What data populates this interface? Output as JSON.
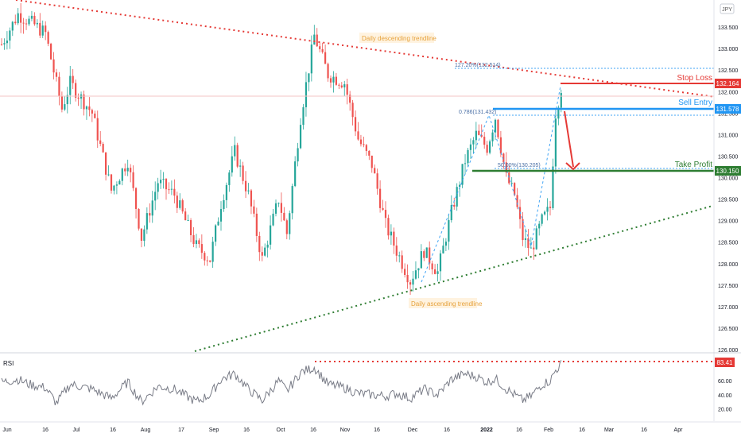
{
  "chart_data": {
    "type": "candlestick",
    "currency_badge": "JPY",
    "price_axis": {
      "min": 126.0,
      "max": 134.0,
      "ticks": [
        "126.000",
        "126.500",
        "127.000",
        "127.500",
        "128.000",
        "128.500",
        "129.000",
        "129.500",
        "130.000",
        "130.500",
        "131.000",
        "131.500",
        "132.000",
        "132.500",
        "133.000",
        "133.500"
      ]
    },
    "time_axis": {
      "ticks": [
        "Jun",
        "16",
        "Jul",
        "16",
        "Aug",
        "17",
        "Sep",
        "16",
        "Oct",
        "16",
        "Nov",
        "16",
        "Dec",
        "16",
        "2022",
        "16",
        "Feb",
        "16",
        "Mar",
        "16",
        "Apr"
      ]
    },
    "price_path": [
      {
        "t": 0,
        "p": 133.1
      },
      {
        "t": 6,
        "p": 133.8
      },
      {
        "t": 12,
        "p": 133.55
      },
      {
        "t": 16,
        "p": 133.35
      },
      {
        "t": 22,
        "p": 131.6
      },
      {
        "t": 25,
        "p": 132.2
      },
      {
        "t": 33,
        "p": 131.5
      },
      {
        "t": 40,
        "p": 129.7
      },
      {
        "t": 46,
        "p": 130.4
      },
      {
        "t": 51,
        "p": 128.6
      },
      {
        "t": 57,
        "p": 129.9
      },
      {
        "t": 63,
        "p": 129.6
      },
      {
        "t": 71,
        "p": 128.4
      },
      {
        "t": 76,
        "p": 128.1
      },
      {
        "t": 80,
        "p": 129.4
      },
      {
        "t": 85,
        "p": 130.6
      },
      {
        "t": 90,
        "p": 129.6
      },
      {
        "t": 95,
        "p": 128.1
      },
      {
        "t": 101,
        "p": 129.5
      },
      {
        "t": 104,
        "p": 128.7
      },
      {
        "t": 109,
        "p": 131.4
      },
      {
        "t": 114,
        "p": 133.3
      },
      {
        "t": 119,
        "p": 132.4
      },
      {
        "t": 125,
        "p": 132.2
      },
      {
        "t": 130,
        "p": 130.9
      },
      {
        "t": 135,
        "p": 130.3
      },
      {
        "t": 140,
        "p": 128.9
      },
      {
        "t": 144,
        "p": 128.3
      },
      {
        "t": 149,
        "p": 127.6
      },
      {
        "t": 154,
        "p": 128.3
      },
      {
        "t": 159,
        "p": 127.8
      },
      {
        "t": 164,
        "p": 129.2
      },
      {
        "t": 169,
        "p": 130.4
      },
      {
        "t": 173,
        "p": 131.0
      },
      {
        "t": 177,
        "p": 130.7
      },
      {
        "t": 180,
        "p": 131.4
      },
      {
        "t": 184,
        "p": 130.0
      },
      {
        "t": 187,
        "p": 129.6
      },
      {
        "t": 190,
        "p": 128.6
      },
      {
        "t": 193,
        "p": 128.3
      },
      {
        "t": 197,
        "p": 129.0
      },
      {
        "t": 200,
        "p": 129.3
      },
      {
        "t": 202,
        "p": 131.5
      },
      {
        "t": 204,
        "p": 132.1
      }
    ],
    "rsi": {
      "label": "RSI",
      "ticks": [
        "20.00",
        "40.00",
        "60.00"
      ],
      "marker_value": "83.41",
      "path": [
        {
          "t": 0,
          "p": 58
        },
        {
          "t": 6,
          "p": 62
        },
        {
          "t": 10,
          "p": 55
        },
        {
          "t": 16,
          "p": 50
        },
        {
          "t": 20,
          "p": 28
        },
        {
          "t": 25,
          "p": 55
        },
        {
          "t": 33,
          "p": 48
        },
        {
          "t": 40,
          "p": 35
        },
        {
          "t": 46,
          "p": 58
        },
        {
          "t": 51,
          "p": 30
        },
        {
          "t": 57,
          "p": 52
        },
        {
          "t": 63,
          "p": 48
        },
        {
          "t": 71,
          "p": 30
        },
        {
          "t": 76,
          "p": 40
        },
        {
          "t": 80,
          "p": 62
        },
        {
          "t": 85,
          "p": 70
        },
        {
          "t": 90,
          "p": 48
        },
        {
          "t": 95,
          "p": 32
        },
        {
          "t": 101,
          "p": 60
        },
        {
          "t": 104,
          "p": 45
        },
        {
          "t": 109,
          "p": 72
        },
        {
          "t": 114,
          "p": 79
        },
        {
          "t": 119,
          "p": 55
        },
        {
          "t": 125,
          "p": 50
        },
        {
          "t": 130,
          "p": 42
        },
        {
          "t": 135,
          "p": 40
        },
        {
          "t": 140,
          "p": 38
        },
        {
          "t": 144,
          "p": 42
        },
        {
          "t": 149,
          "p": 35
        },
        {
          "t": 154,
          "p": 48
        },
        {
          "t": 159,
          "p": 40
        },
        {
          "t": 164,
          "p": 62
        },
        {
          "t": 169,
          "p": 70
        },
        {
          "t": 173,
          "p": 66
        },
        {
          "t": 177,
          "p": 58
        },
        {
          "t": 180,
          "p": 63
        },
        {
          "t": 184,
          "p": 48
        },
        {
          "t": 187,
          "p": 40
        },
        {
          "t": 190,
          "p": 32
        },
        {
          "t": 193,
          "p": 38
        },
        {
          "t": 197,
          "p": 55
        },
        {
          "t": 200,
          "p": 60
        },
        {
          "t": 202,
          "p": 75
        },
        {
          "t": 204,
          "p": 83.4
        }
      ]
    },
    "levels": [
      {
        "name": "Stop Loss",
        "value": "132.164",
        "color": "#e53935"
      },
      {
        "name": "Sell Entry",
        "value": "131.578",
        "color": "#2196f3"
      },
      {
        "name": "Take Profit",
        "value": "130.150",
        "color": "#2e7d32"
      }
    ],
    "fib_labels": {
      "ext": "127.20%(132.514)",
      "retr_786": "0.786(131.432)",
      "retr_50": "50.00%(130.205)"
    },
    "annotations": {
      "descending": "Daily descending trendline",
      "ascending": "Daily ascending trendline"
    },
    "colors": {
      "up": "#26a69a",
      "down": "#ef5350",
      "descending_trend": "#e53935",
      "ascending_trend": "#2e7d32",
      "annotation_bg": "#fff3e0",
      "annotation_text": "#e6a23c",
      "fib": "#42a5f5",
      "rsi_line": "#787b86"
    }
  }
}
